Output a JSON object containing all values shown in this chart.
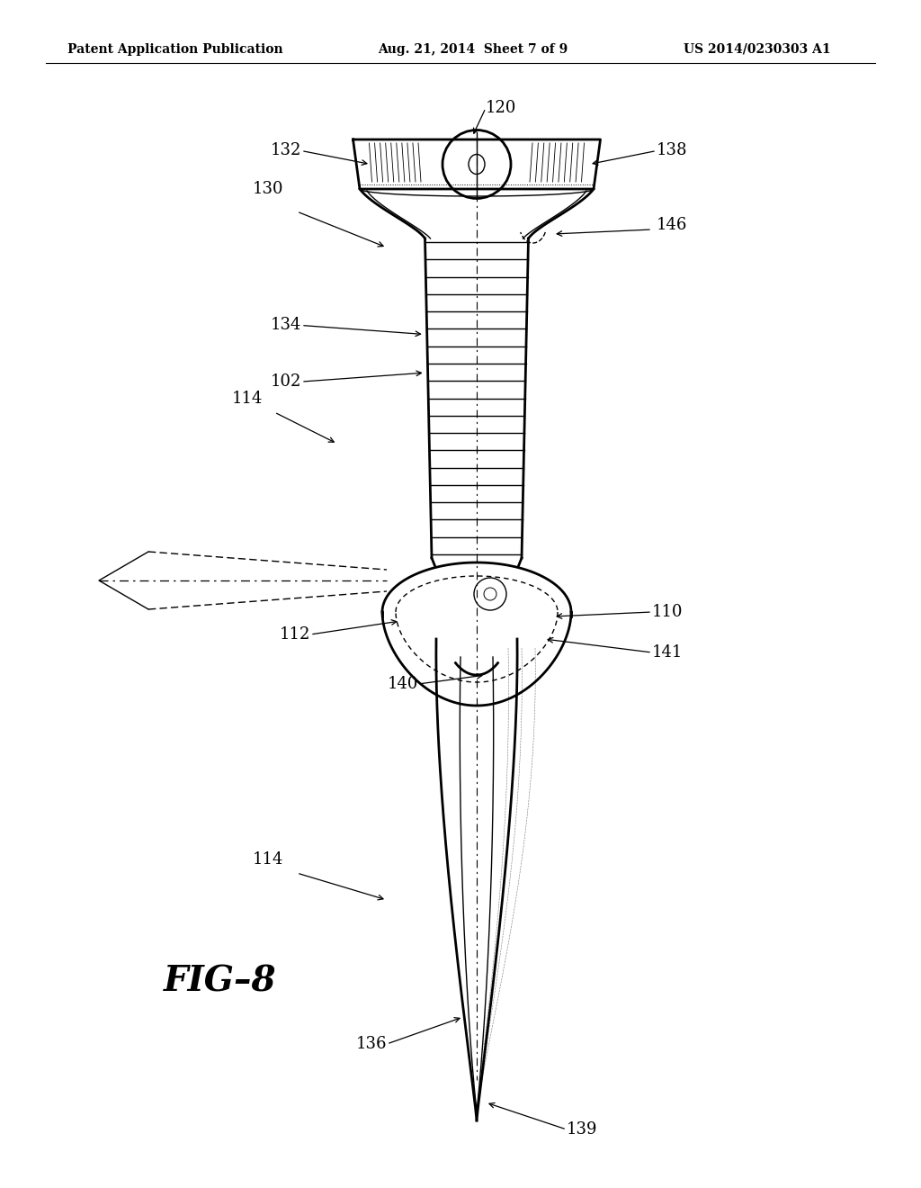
{
  "bg_color": "#ffffff",
  "line_color": "#000000",
  "header_left": "Patent Application Publication",
  "header_center": "Aug. 21, 2014  Sheet 7 of 9",
  "header_right": "US 2014/0230303 A1",
  "fig_label": "FIG–8"
}
